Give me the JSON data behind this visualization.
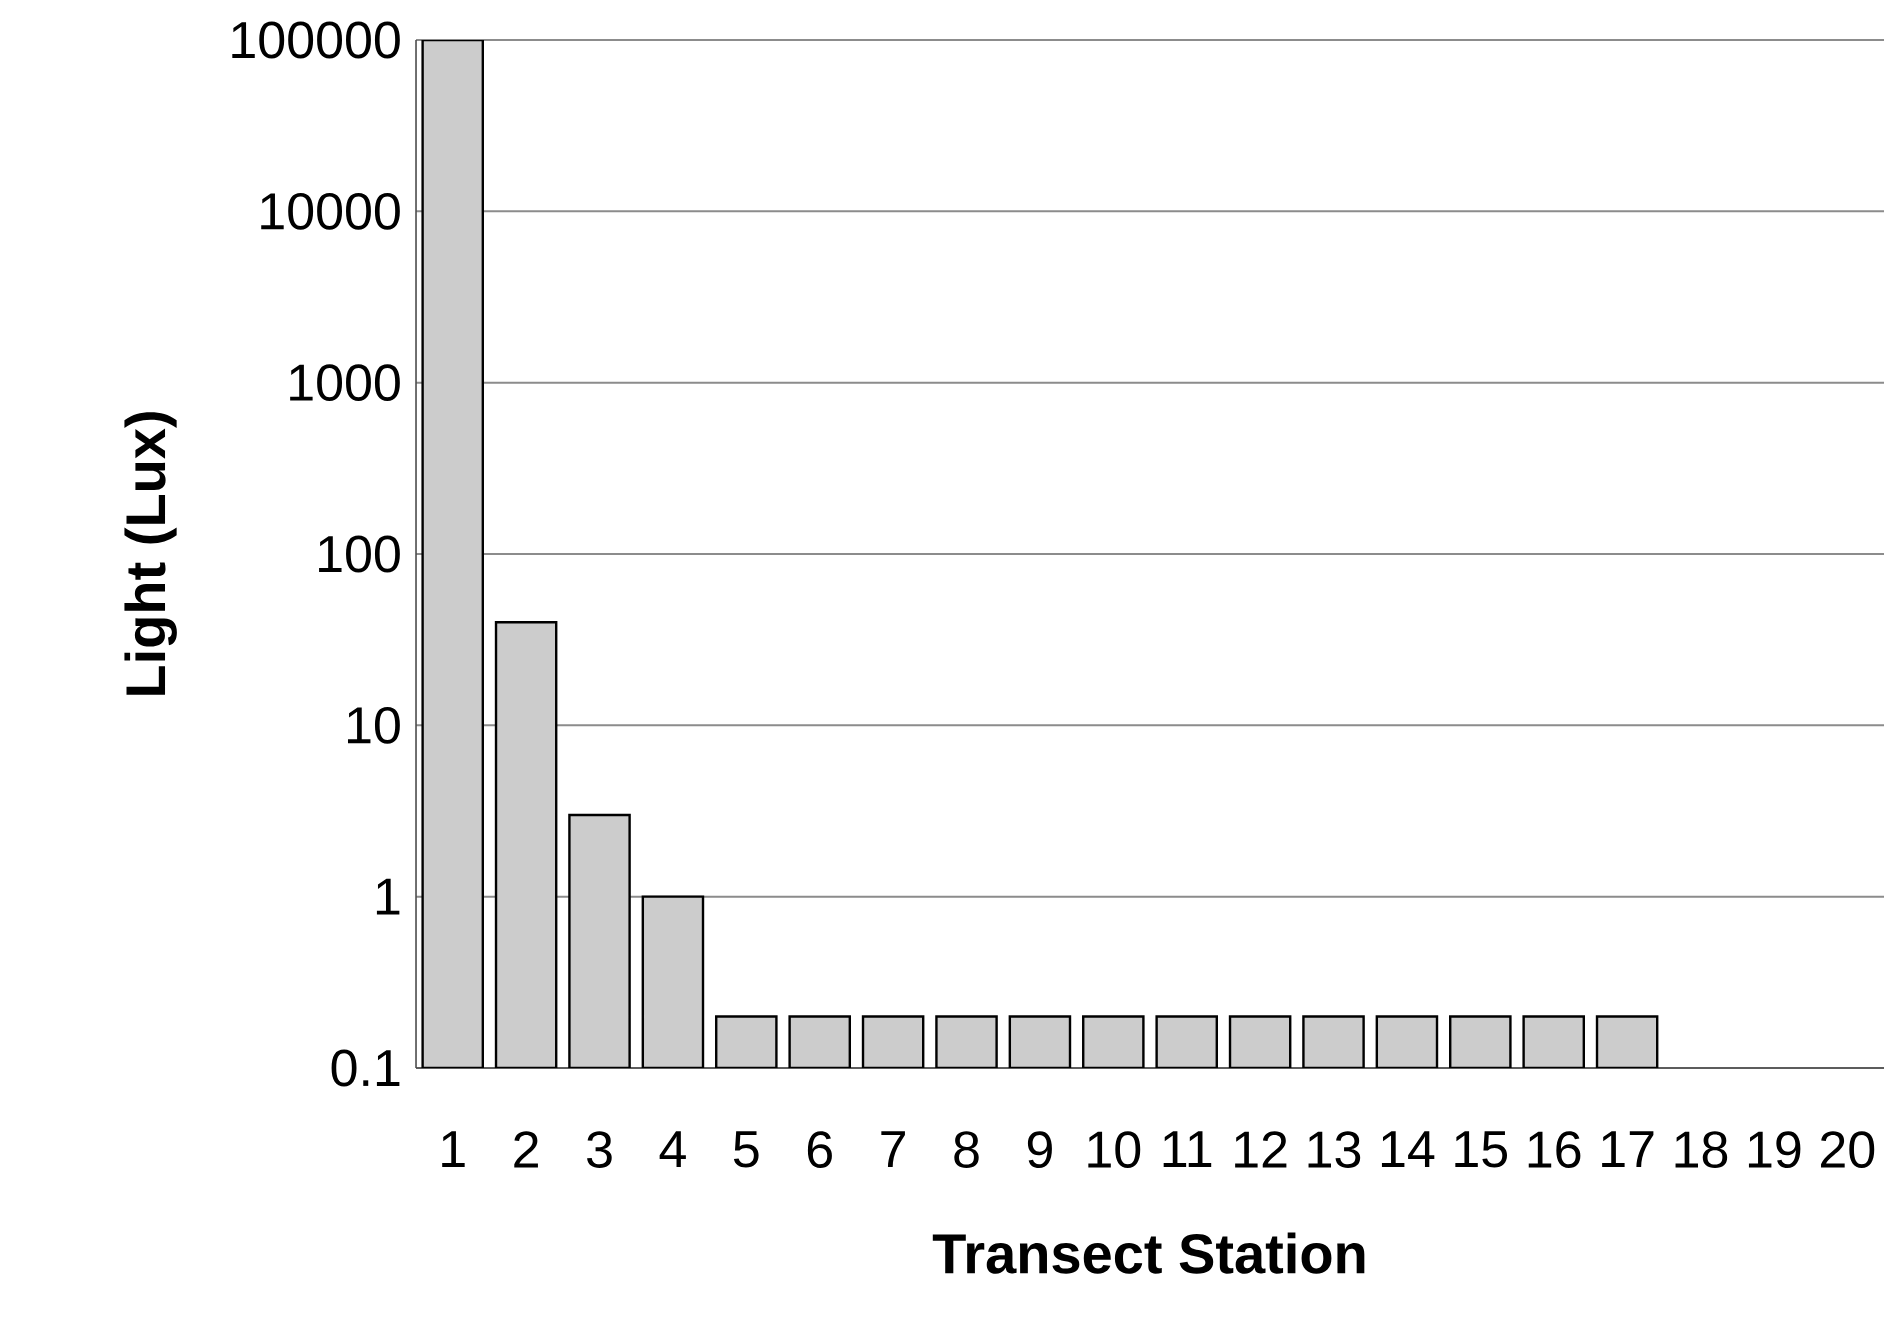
{
  "chart_data": {
    "type": "bar",
    "xlabel": "Transect Station",
    "ylabel": "Light (Lux)",
    "categories": [
      "1",
      "2",
      "3",
      "4",
      "5",
      "6",
      "7",
      "8",
      "9",
      "10",
      "11",
      "12",
      "13",
      "14",
      "15",
      "16",
      "17",
      "18",
      "19",
      "20"
    ],
    "values": [
      100000,
      40,
      3,
      1,
      0.2,
      0.2,
      0.2,
      0.2,
      0.2,
      0.2,
      0.2,
      0.2,
      0.2,
      0.2,
      0.2,
      0.2,
      0.2,
      null,
      null,
      null
    ],
    "color": "#cccccc",
    "log": true,
    "ylim": [
      0.1,
      100000
    ],
    "yticks": [
      0.1,
      1,
      10,
      100,
      1000,
      10000,
      100000
    ],
    "grid": "y"
  }
}
